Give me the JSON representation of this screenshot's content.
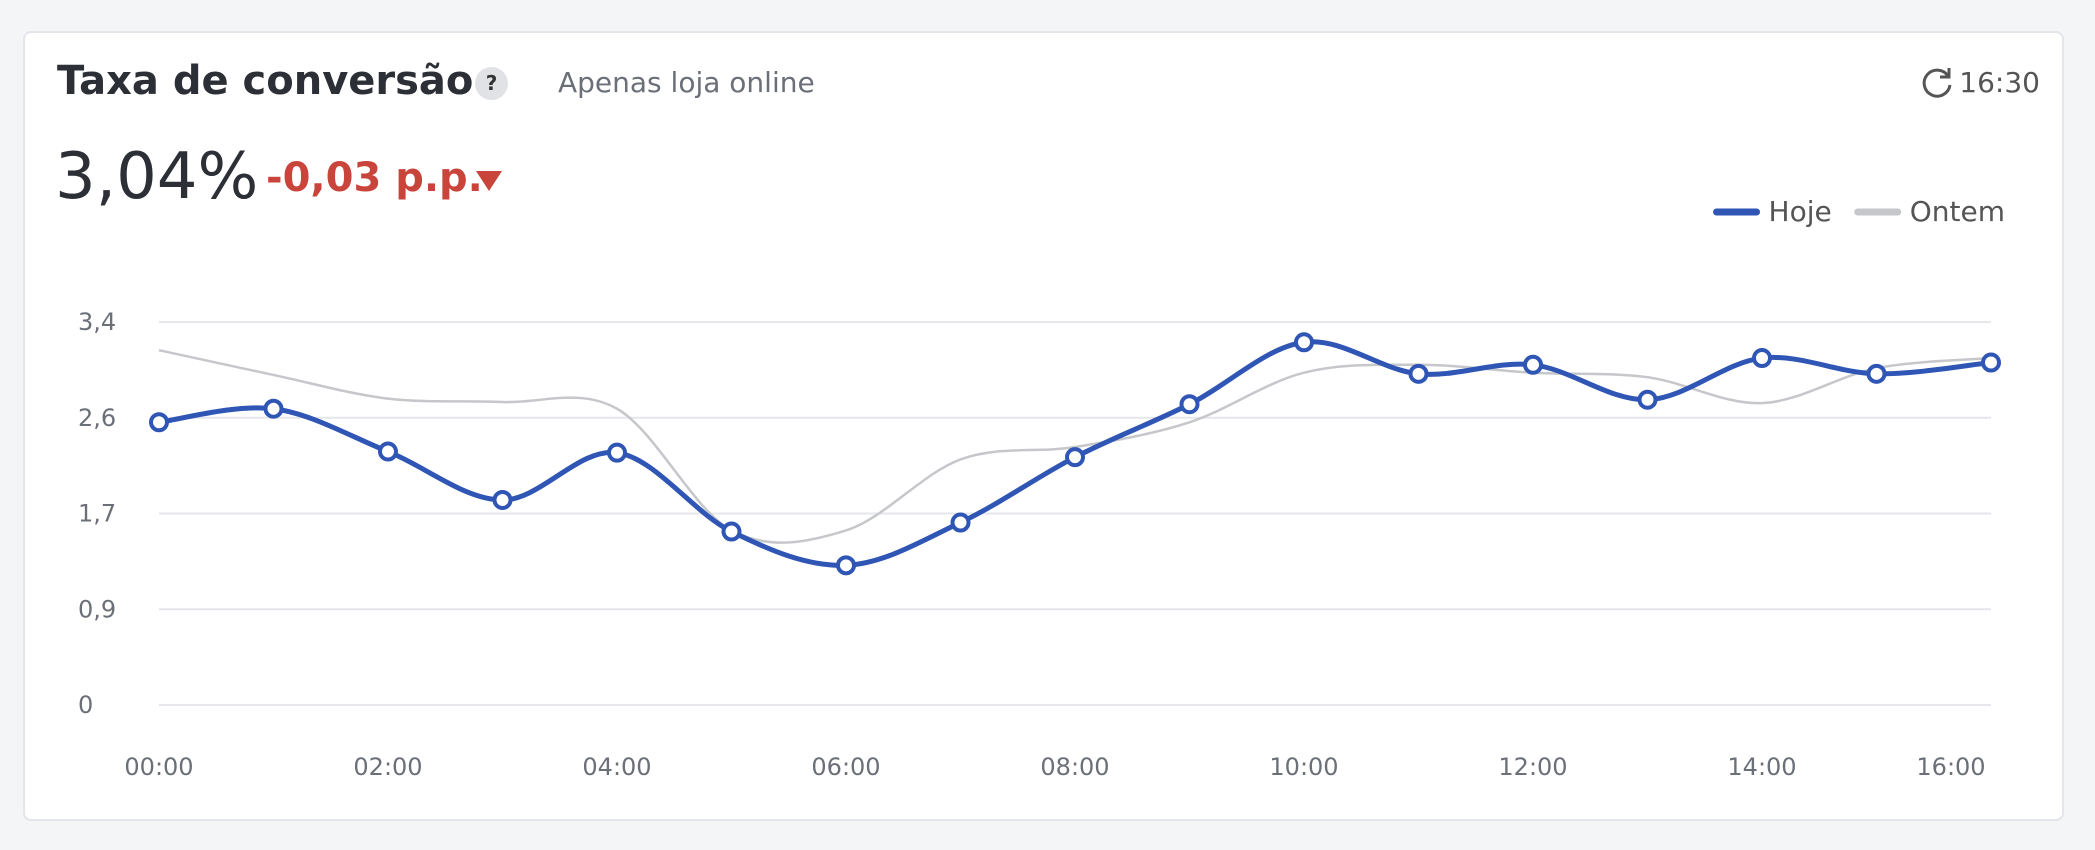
{
  "header": {
    "title": "Taxa de conversão",
    "help": "?",
    "subtitle": "Apenas loja online",
    "updated": "16:30",
    "kpi": "3,04%",
    "delta": "-0,03 p.p."
  },
  "chart_data": {
    "type": "line",
    "categories": [
      "00:00",
      null,
      "02:00",
      null,
      "04:00",
      null,
      "06:00",
      null,
      "08:00",
      null,
      "10:00",
      null,
      "12:00",
      null,
      "14:00",
      null,
      "16:00"
    ],
    "series": [
      {
        "name": "Hoje",
        "color": "#2f55b5",
        "values": [
          2.51,
          2.63,
          2.25,
          1.82,
          2.24,
          1.54,
          1.24,
          1.62,
          2.2,
          2.67,
          3.22,
          2.94,
          3.02,
          2.71,
          3.08,
          2.94,
          3.04
        ],
        "markers": true
      },
      {
        "name": "Ontem",
        "color": "#c6c7ca",
        "values": [
          3.15,
          2.93,
          2.72,
          2.69,
          2.63,
          1.55,
          1.55,
          2.18,
          2.29,
          2.51,
          2.95,
          3.02,
          2.95,
          2.91,
          2.68,
          2.99,
          3.08
        ],
        "markers": false
      }
    ],
    "ylim": [
      0,
      3.4
    ],
    "yticks": [
      0,
      {
        "value": 0.85,
        "label": "0,9"
      },
      {
        "value": 1.7,
        "label": "1,7"
      },
      {
        "value": 2.55,
        "label": "2,6"
      },
      {
        "value": 3.4,
        "label": "3,4"
      }
    ],
    "grid": true,
    "legend": "top-right"
  }
}
